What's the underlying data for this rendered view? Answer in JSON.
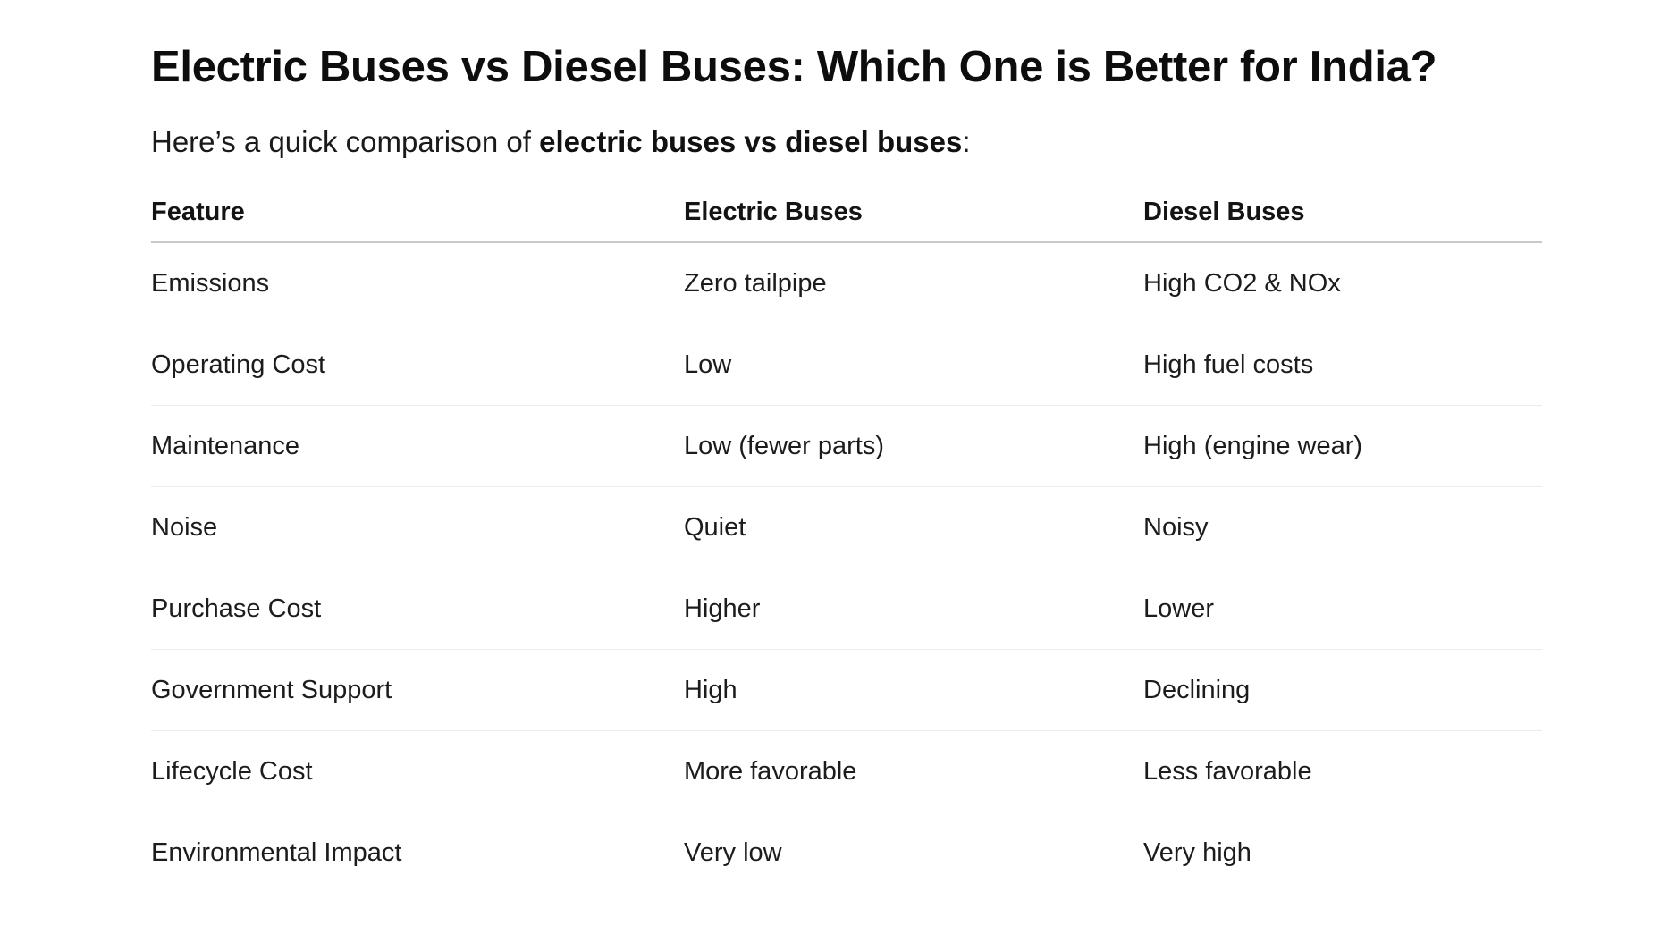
{
  "article": {
    "title": "Electric Buses vs Diesel Buses: Which One is Better for India?",
    "intro_prefix": "Here’s a quick comparison of ",
    "intro_bold": "electric buses vs diesel buses",
    "intro_suffix": ":"
  },
  "table": {
    "headers": [
      "Feature",
      "Electric Buses",
      "Diesel Buses"
    ],
    "rows": [
      [
        "Emissions",
        "Zero tailpipe",
        "High CO2 & NOx"
      ],
      [
        "Operating Cost",
        "Low",
        "High fuel costs"
      ],
      [
        "Maintenance",
        "Low (fewer parts)",
        "High (engine wear)"
      ],
      [
        "Noise",
        "Quiet",
        "Noisy"
      ],
      [
        "Purchase Cost",
        "Higher",
        "Lower"
      ],
      [
        "Government Support",
        "High",
        "Declining"
      ],
      [
        "Lifecycle Cost",
        "More favorable",
        "Less favorable"
      ],
      [
        "Environmental Impact",
        "Very low",
        "Very high"
      ]
    ]
  }
}
